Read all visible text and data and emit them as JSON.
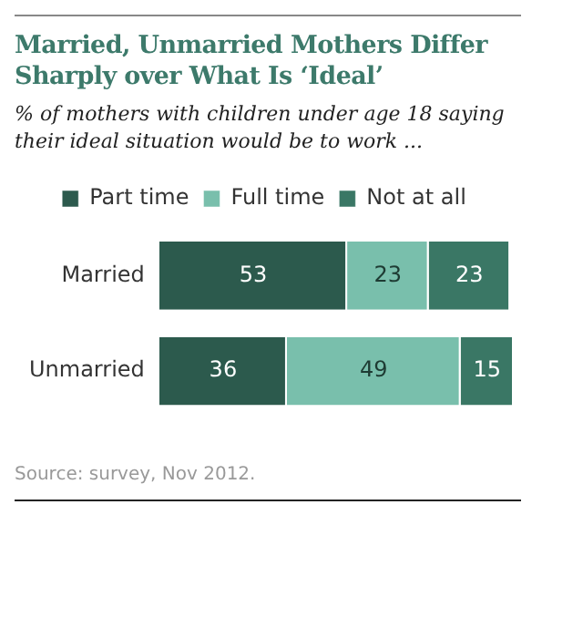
{
  "chart_data": {
    "type": "bar",
    "orientation": "horizontal",
    "stacked": true,
    "title": "Married, Unmarried Mothers Differ Sharply over What Is ‘Ideal’",
    "subtitle": "% of mothers with children under age 18 saying their ideal situation would be to work ...",
    "categories": [
      "Married",
      "Unmarried"
    ],
    "series": [
      {
        "name": "Part time",
        "color": "#2c5a4d",
        "values": [
          53,
          36
        ]
      },
      {
        "name": "Full time",
        "color": "#79bfac",
        "values": [
          23,
          49
        ]
      },
      {
        "name": "Not at all",
        "color": "#3a7765",
        "values": [
          23,
          15
        ]
      }
    ],
    "data_labels": true,
    "legend": "top",
    "grid": false,
    "annotations": [
      "Source: survey, Nov 2012."
    ]
  }
}
